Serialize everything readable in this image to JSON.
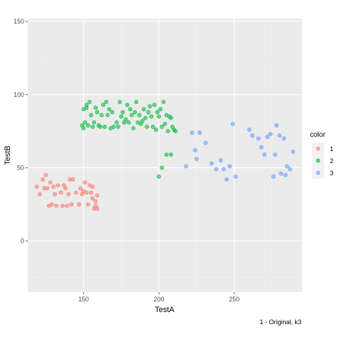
{
  "chart_data": {
    "type": "scatter",
    "xlabel": "TestA",
    "ylabel": "TestB",
    "caption": "1 - Original, k3",
    "xlim": [
      113,
      295
    ],
    "ylim": [
      -35,
      152
    ],
    "xticks": [
      150,
      200,
      250
    ],
    "yticks": [
      0,
      50,
      100,
      150
    ],
    "grid": true,
    "legend": {
      "title": "color",
      "position": "right"
    },
    "series": [
      {
        "name": "1",
        "color": "#F8766D",
        "points": [
          [
            119,
            37
          ],
          [
            121,
            32
          ],
          [
            123,
            42
          ],
          [
            124,
            36
          ],
          [
            125,
            45
          ],
          [
            126,
            36
          ],
          [
            127,
            24
          ],
          [
            128,
            40
          ],
          [
            129,
            25
          ],
          [
            130,
            37
          ],
          [
            131,
            32
          ],
          [
            132,
            24
          ],
          [
            133,
            38
          ],
          [
            135,
            33
          ],
          [
            136,
            24
          ],
          [
            137,
            38
          ],
          [
            138,
            36
          ],
          [
            139,
            24
          ],
          [
            140,
            32
          ],
          [
            141,
            42
          ],
          [
            142,
            25
          ],
          [
            143,
            42
          ],
          [
            145,
            33
          ],
          [
            147,
            25
          ],
          [
            148,
            36
          ],
          [
            149,
            32
          ],
          [
            150,
            34
          ],
          [
            151,
            40
          ],
          [
            152,
            33
          ],
          [
            153,
            25
          ],
          [
            154,
            38
          ],
          [
            155,
            33
          ],
          [
            156,
            37
          ],
          [
            156,
            29
          ],
          [
            157,
            22
          ],
          [
            158,
            24
          ],
          [
            158,
            27
          ],
          [
            159,
            31
          ],
          [
            159,
            22
          ]
        ]
      },
      {
        "name": "2",
        "color": "#00BA38",
        "points": [
          [
            149,
            79
          ],
          [
            150,
            90
          ],
          [
            150,
            77
          ],
          [
            151,
            81
          ],
          [
            152,
            93
          ],
          [
            152,
            91
          ],
          [
            153,
            79
          ],
          [
            154,
            95
          ],
          [
            155,
            86
          ],
          [
            156,
            78
          ],
          [
            157,
            81
          ],
          [
            158,
            91
          ],
          [
            159,
            88
          ],
          [
            160,
            79
          ],
          [
            161,
            78
          ],
          [
            162,
            86
          ],
          [
            163,
            93
          ],
          [
            164,
            78
          ],
          [
            165,
            95
          ],
          [
            166,
            86
          ],
          [
            167,
            90
          ],
          [
            168,
            77
          ],
          [
            169,
            88
          ],
          [
            170,
            78
          ],
          [
            172,
            81
          ],
          [
            173,
            78
          ],
          [
            174,
            95
          ],
          [
            175,
            85
          ],
          [
            176,
            88
          ],
          [
            177,
            81
          ],
          [
            178,
            83
          ],
          [
            179,
            93
          ],
          [
            180,
            81
          ],
          [
            181,
            90
          ],
          [
            182,
            86
          ],
          [
            183,
            77
          ],
          [
            184,
            88
          ],
          [
            185,
            95
          ],
          [
            186,
            81
          ],
          [
            187,
            86
          ],
          [
            188,
            80
          ],
          [
            189,
            82
          ],
          [
            190,
            90
          ],
          [
            191,
            84
          ],
          [
            192,
            78
          ],
          [
            193,
            88
          ],
          [
            194,
            92
          ],
          [
            195,
            85
          ],
          [
            196,
            78
          ],
          [
            197,
            93
          ],
          [
            198,
            76
          ],
          [
            199,
            88
          ],
          [
            200,
            85
          ],
          [
            201,
            90
          ],
          [
            202,
            78
          ],
          [
            203,
            95
          ],
          [
            204,
            80
          ],
          [
            205,
            86
          ],
          [
            206,
            75
          ],
          [
            207,
            85
          ],
          [
            208,
            84
          ],
          [
            209,
            78
          ],
          [
            210,
            76
          ],
          [
            211,
            75
          ],
          [
            200,
            44
          ],
          [
            202,
            50
          ],
          [
            205,
            59
          ],
          [
            208,
            59
          ]
        ]
      },
      {
        "name": "3",
        "color": "#619CFF",
        "points": [
          [
            218,
            51
          ],
          [
            222,
            74
          ],
          [
            224,
            62
          ],
          [
            225,
            56
          ],
          [
            227,
            74
          ],
          [
            231,
            67
          ],
          [
            235,
            53
          ],
          [
            238,
            49
          ],
          [
            241,
            55
          ],
          [
            243,
            49
          ],
          [
            245,
            42
          ],
          [
            247,
            51
          ],
          [
            249,
            80
          ],
          [
            251,
            44
          ],
          [
            260,
            76
          ],
          [
            262,
            72
          ],
          [
            266,
            70
          ],
          [
            268,
            64
          ],
          [
            270,
            59
          ],
          [
            272,
            71
          ],
          [
            274,
            73
          ],
          [
            276,
            44
          ],
          [
            277,
            59
          ],
          [
            278,
            79
          ],
          [
            280,
            72
          ],
          [
            281,
            46
          ],
          [
            283,
            70
          ],
          [
            284,
            45
          ],
          [
            285,
            51
          ],
          [
            287,
            49
          ],
          [
            289,
            61
          ]
        ]
      }
    ]
  }
}
